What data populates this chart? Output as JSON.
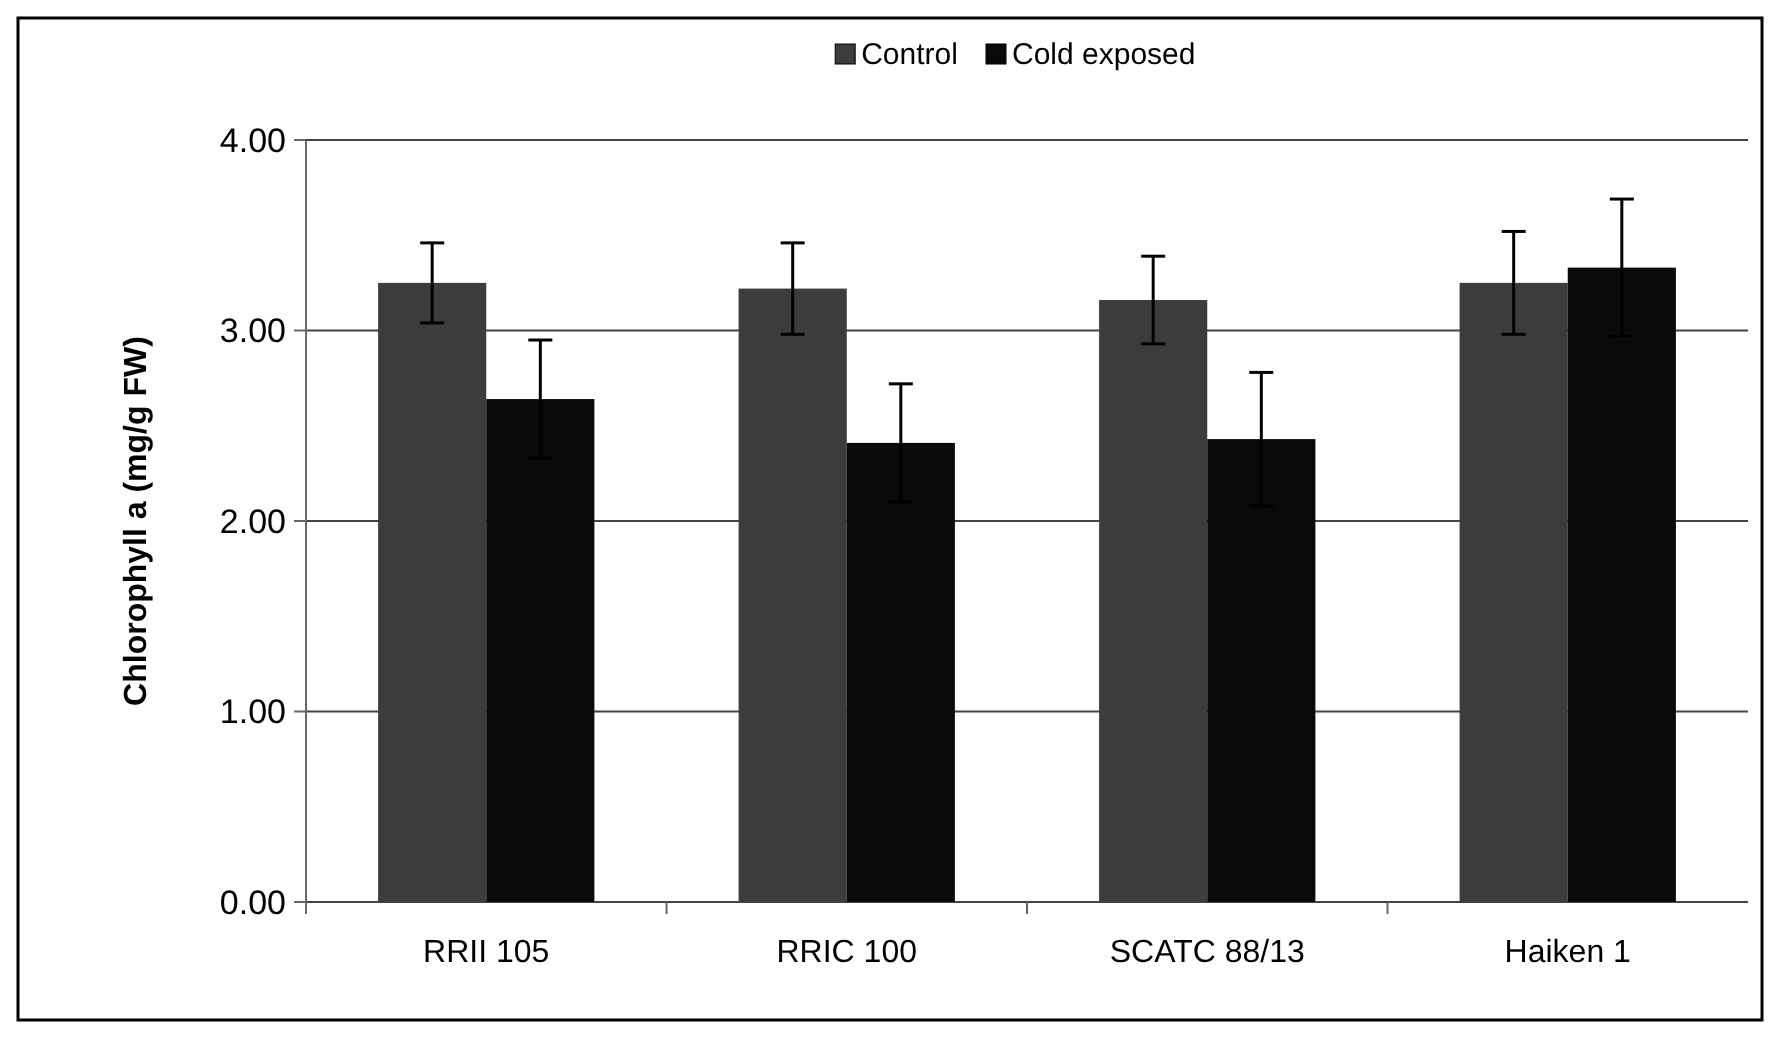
{
  "chart_data": {
    "type": "bar",
    "ylabel": "Chlorophyll a (mg/g FW)",
    "categories": [
      "RRII 105",
      "RRIC 100",
      "SCATC 88/13",
      "Haiken 1"
    ],
    "series": [
      {
        "name": "Control",
        "color": "#3c3c3c",
        "values": [
          3.25,
          3.22,
          3.16,
          3.25
        ],
        "errors": [
          0.21,
          0.24,
          0.23,
          0.27
        ]
      },
      {
        "name": "Cold exposed",
        "color": "#0a0a0a",
        "values": [
          2.64,
          2.41,
          2.43,
          3.33
        ],
        "errors": [
          0.31,
          0.31,
          0.35,
          0.36
        ]
      }
    ],
    "ylim": [
      0,
      4
    ],
    "yticks": [
      {
        "value": 0,
        "label": "0.00"
      },
      {
        "value": 1,
        "label": "1.00"
      },
      {
        "value": 2,
        "label": "2.00"
      },
      {
        "value": 3,
        "label": "3.00"
      },
      {
        "value": 4,
        "label": "4.00"
      }
    ],
    "grid": "y",
    "legend": "top"
  }
}
